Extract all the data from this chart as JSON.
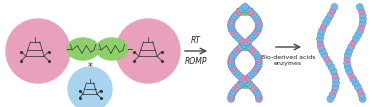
{
  "bg_color": "#ffffff",
  "pink_fill": "#e8a0bc",
  "green_fill": "#8dcf6a",
  "blue_fill": "#a8d4f0",
  "blue_dot": "#78b8e8",
  "pink_dot": "#e888b0",
  "green_bar": "#78c858",
  "arrow_color": "#444444",
  "text_rt": "RT",
  "text_romp": "ROMP",
  "text_bio": "Bio-derived acids\nenzymes",
  "fig_width": 3.78,
  "fig_height": 1.07,
  "dpi": 100
}
